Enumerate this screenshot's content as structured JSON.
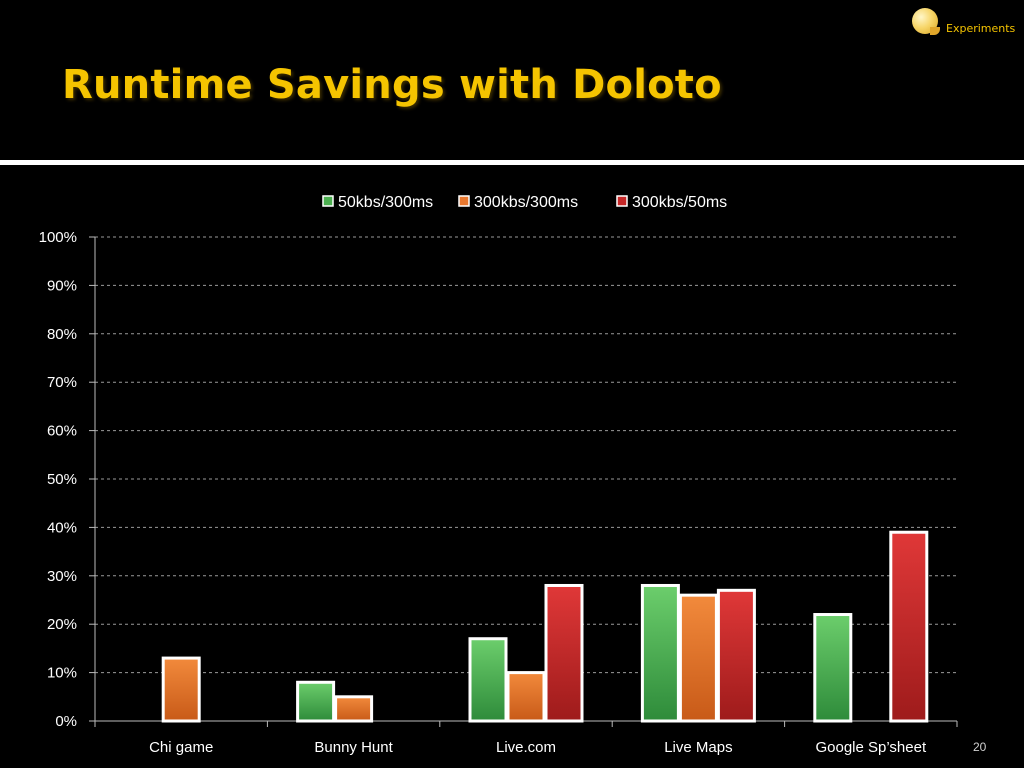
{
  "slide": {
    "title": "Runtime Savings with Doloto",
    "section_label": "Experiments",
    "page_number": "20"
  },
  "colors": {
    "title": "#f5c400",
    "background": "#000000",
    "series_green": "#4caf50",
    "series_orange": "#e8772e",
    "series_red": "#c62828"
  },
  "chart_data": {
    "type": "bar",
    "title": "",
    "xlabel": "",
    "ylabel": "",
    "categories": [
      "Chi game",
      "Bunny Hunt",
      "Live.com",
      "Live Maps",
      "Google Sp’sheet"
    ],
    "series": [
      {
        "name": "50kbs/300ms",
        "values": [
          null,
          8,
          17,
          28,
          22
        ]
      },
      {
        "name": "300kbs/300ms",
        "values": [
          13,
          5,
          10,
          26,
          null
        ]
      },
      {
        "name": "300kbs/50ms",
        "values": [
          null,
          null,
          28,
          27,
          39
        ]
      }
    ],
    "ylim": [
      0,
      100
    ],
    "yticks": [
      "0%",
      "10%",
      "20%",
      "30%",
      "40%",
      "50%",
      "60%",
      "70%",
      "80%",
      "90%",
      "100%"
    ],
    "grid": true,
    "legend": "top"
  }
}
